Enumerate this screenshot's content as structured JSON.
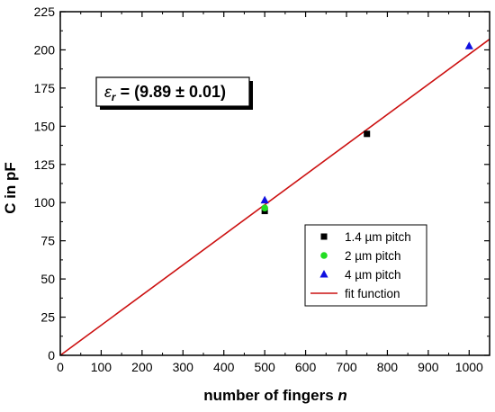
{
  "chart_data": {
    "type": "scatter",
    "xlabel": "number of fingers ",
    "xlabel_var": "n",
    "ylabel": "C in pF",
    "xlim": [
      0,
      1050
    ],
    "ylim": [
      0,
      225
    ],
    "x_ticks": [
      0,
      100,
      200,
      300,
      400,
      500,
      600,
      700,
      800,
      900,
      1000
    ],
    "y_ticks": [
      0,
      25,
      50,
      75,
      100,
      125,
      150,
      175,
      200,
      225
    ],
    "grid": false,
    "legend_position": "bottom-right",
    "annotation": {
      "symbol": "ε",
      "subscript": "r",
      "text": " = (9.89 ± 0.01)"
    },
    "series": [
      {
        "name": "1.4 µm pitch",
        "marker": "square",
        "color": "#000000",
        "points": [
          [
            500,
            94.5
          ],
          [
            750,
            145
          ]
        ]
      },
      {
        "name": "2 µm pitch",
        "marker": "circle",
        "color": "#22dd22",
        "points": [
          [
            500,
            96.5
          ]
        ]
      },
      {
        "name": "4 µm pitch",
        "marker": "triangle",
        "color": "#1010e0",
        "points": [
          [
            500,
            101.5
          ],
          [
            1000,
            202.5
          ]
        ]
      },
      {
        "name": "fit function",
        "marker": "line",
        "color": "#cc1111",
        "line": [
          [
            0,
            0
          ],
          [
            1050,
            207
          ]
        ]
      }
    ]
  }
}
